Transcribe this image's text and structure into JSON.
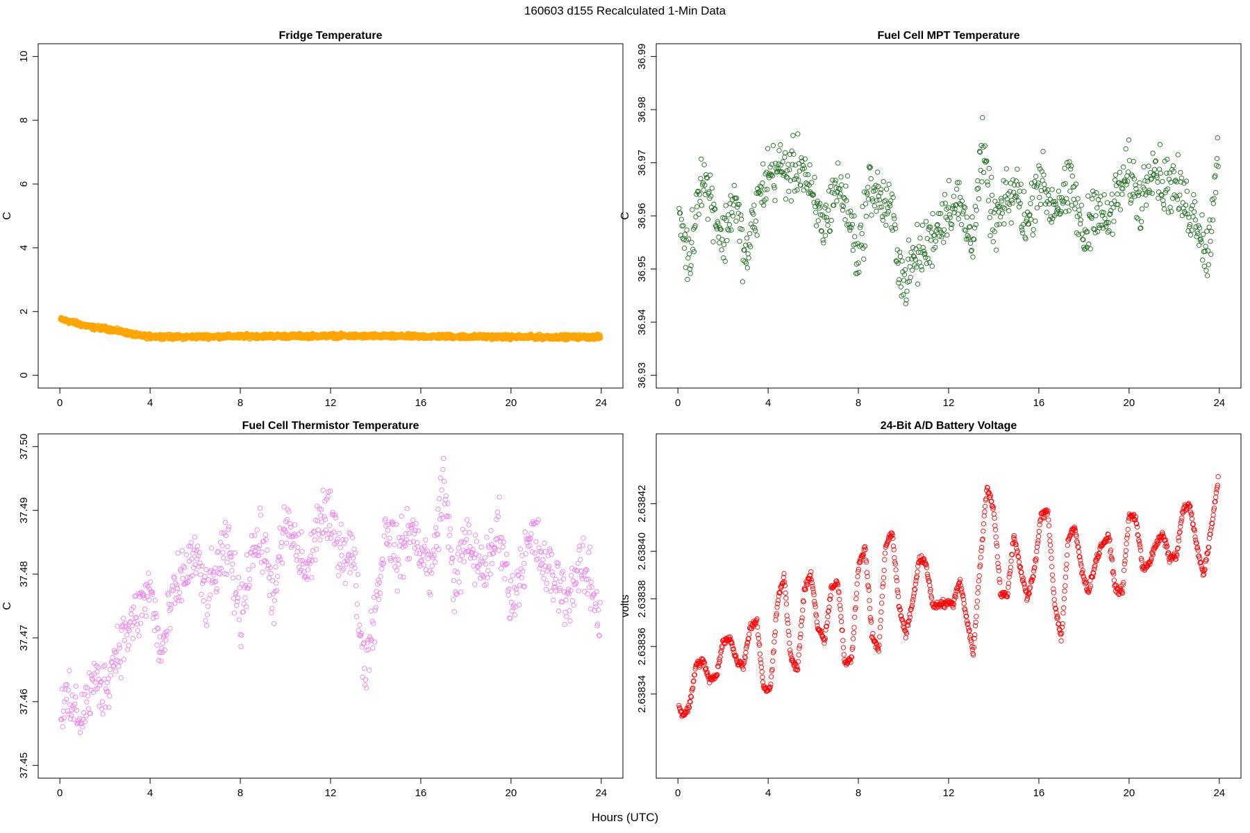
{
  "figure": {
    "title": "160603   d155   Recalculated 1-Min Data",
    "xlabel": "Hours (UTC)"
  },
  "chart_data": [
    {
      "type": "scatter",
      "title": "Fridge Temperature",
      "ylabel": "C",
      "xlim": [
        0,
        24
      ],
      "ylim": [
        0,
        10
      ],
      "xticks": [
        0,
        4,
        8,
        12,
        16,
        20,
        24
      ],
      "yticks": [
        0,
        2,
        4,
        6,
        8,
        10
      ],
      "ytick_labels": [
        "0",
        "2",
        "4",
        "6",
        "8",
        "10"
      ],
      "color": "#ffa500",
      "series": [
        {
          "x": [
            0.0,
            0.5,
            1.0,
            1.5,
            2.0,
            2.5,
            3.0,
            3.5,
            4.0,
            4.5,
            5.0,
            6.0,
            7.0,
            8.0,
            9.0,
            10.0,
            11.0,
            12.0,
            13.0,
            14.0,
            15.0,
            16.0,
            17.0,
            18.0,
            19.0,
            20.0,
            21.0,
            22.0,
            23.0,
            24.0
          ],
          "y": [
            1.76,
            1.68,
            1.58,
            1.5,
            1.47,
            1.4,
            1.33,
            1.24,
            1.22,
            1.22,
            1.2,
            1.21,
            1.22,
            1.22,
            1.23,
            1.23,
            1.23,
            1.24,
            1.23,
            1.23,
            1.22,
            1.22,
            1.22,
            1.21,
            1.21,
            1.2,
            1.2,
            1.2,
            1.2,
            1.2
          ]
        }
      ]
    },
    {
      "type": "scatter",
      "title": "Fuel Cell MPT Temperature",
      "ylabel": "C",
      "xlim": [
        0,
        24
      ],
      "ylim": [
        36.93,
        36.99
      ],
      "xticks": [
        0,
        4,
        8,
        12,
        16,
        20,
        24
      ],
      "yticks": [
        36.93,
        36.94,
        36.95,
        36.96,
        36.97,
        36.98,
        36.99
      ],
      "ytick_labels": [
        "36.93",
        "36.94",
        "36.95",
        "36.96",
        "36.97",
        "36.98",
        "36.99"
      ],
      "color": "#1a6b1a",
      "series": [
        {
          "x": [
            0.0,
            0.5,
            1.0,
            1.5,
            2.0,
            2.5,
            3.0,
            3.5,
            4.0,
            4.5,
            5.0,
            5.5,
            6.0,
            6.5,
            7.0,
            7.5,
            8.0,
            8.5,
            9.0,
            9.5,
            10.0,
            10.5,
            11.0,
            11.5,
            12.0,
            12.5,
            13.0,
            13.5,
            14.0,
            14.5,
            15.0,
            15.5,
            16.0,
            16.5,
            17.0,
            17.5,
            18.0,
            18.5,
            19.0,
            19.5,
            20.0,
            20.5,
            21.0,
            21.5,
            22.0,
            22.5,
            23.0,
            23.5,
            24.0
          ],
          "y": [
            36.962,
            36.951,
            36.968,
            36.963,
            36.955,
            36.964,
            36.951,
            36.962,
            36.968,
            36.969,
            36.968,
            36.97,
            36.962,
            36.958,
            36.966,
            36.962,
            36.952,
            36.966,
            36.963,
            36.96,
            36.947,
            36.952,
            36.954,
            36.958,
            36.962,
            36.962,
            36.955,
            36.972,
            36.958,
            36.962,
            36.965,
            36.958,
            36.968,
            36.962,
            36.963,
            36.965,
            36.955,
            36.963,
            36.958,
            36.964,
            36.968,
            36.962,
            36.971,
            36.966,
            36.966,
            36.962,
            36.96,
            36.952,
            36.976
          ]
        }
      ]
    },
    {
      "type": "scatter",
      "title": "Fuel Cell Thermistor Temperature",
      "ylabel": "C",
      "xlim": [
        0,
        24
      ],
      "ylim": [
        37.45,
        37.5
      ],
      "xticks": [
        0,
        4,
        8,
        12,
        16,
        20,
        24
      ],
      "yticks": [
        37.45,
        37.46,
        37.47,
        37.48,
        37.49,
        37.5
      ],
      "ytick_labels": [
        "37.45",
        "37.46",
        "37.47",
        "37.48",
        "37.49",
        "37.50"
      ],
      "color": "#ee82ee",
      "series": [
        {
          "x": [
            0.0,
            0.5,
            1.0,
            1.5,
            2.0,
            2.5,
            3.0,
            3.5,
            4.0,
            4.5,
            5.0,
            5.5,
            6.0,
            6.5,
            7.0,
            7.5,
            8.0,
            8.5,
            9.0,
            9.5,
            10.0,
            10.5,
            11.0,
            11.5,
            12.0,
            12.5,
            13.0,
            13.5,
            14.0,
            14.5,
            15.0,
            15.5,
            16.0,
            16.5,
            17.0,
            17.5,
            18.0,
            18.5,
            19.0,
            19.5,
            20.0,
            20.5,
            21.0,
            21.5,
            22.0,
            22.5,
            23.0,
            23.5,
            24.0
          ],
          "y": [
            37.46,
            37.459,
            37.458,
            37.463,
            37.462,
            37.468,
            37.471,
            37.474,
            37.478,
            37.467,
            37.476,
            37.48,
            37.483,
            37.476,
            37.481,
            37.484,
            37.473,
            37.484,
            37.485,
            37.476,
            37.488,
            37.484,
            37.48,
            37.489,
            37.488,
            37.484,
            37.483,
            37.465,
            37.475,
            37.488,
            37.482,
            37.487,
            37.484,
            37.48,
            37.495,
            37.478,
            37.485,
            37.482,
            37.481,
            37.488,
            37.475,
            37.482,
            37.486,
            37.481,
            37.479,
            37.476,
            37.481,
            37.479,
            37.472
          ]
        }
      ]
    },
    {
      "type": "scatter",
      "title": "24-Bit A/D Battery Voltage",
      "ylabel": "volts",
      "xlim": [
        0,
        24
      ],
      "ylim": [
        2.63831,
        2.638444
      ],
      "xticks": [
        0,
        4,
        8,
        12,
        16,
        20,
        24
      ],
      "yticks": [
        2.63834,
        2.63836,
        2.63838,
        2.6384,
        2.63842
      ],
      "ytick_labels": [
        "2.63834",
        "2.63836",
        "2.63838",
        "2.63840",
        "2.63842"
      ],
      "color": "#ff0000",
      "series": [
        {
          "x": [
            0.0,
            0.2,
            0.5,
            0.8,
            1.1,
            1.4,
            1.7,
            2.0,
            2.3,
            2.6,
            2.9,
            3.2,
            3.5,
            3.8,
            4.1,
            4.4,
            4.7,
            5.0,
            5.3,
            5.6,
            5.9,
            6.2,
            6.5,
            6.8,
            7.1,
            7.4,
            7.7,
            8.0,
            8.3,
            8.6,
            8.9,
            9.2,
            9.5,
            9.8,
            10.1,
            10.4,
            10.7,
            11.0,
            11.3,
            11.6,
            11.9,
            12.2,
            12.5,
            12.8,
            13.1,
            13.4,
            13.7,
            14.0,
            14.3,
            14.6,
            14.9,
            15.2,
            15.5,
            15.8,
            16.1,
            16.4,
            16.7,
            17.0,
            17.3,
            17.6,
            17.9,
            18.2,
            18.5,
            18.8,
            19.1,
            19.4,
            19.7,
            20.0,
            20.3,
            20.6,
            20.9,
            21.2,
            21.5,
            21.8,
            22.1,
            22.4,
            22.7,
            23.0,
            23.3,
            23.6,
            24.0
          ],
          "y": [
            2.638337,
            2.638331,
            2.638334,
            2.638352,
            2.638354,
            2.638346,
            2.638347,
            2.638362,
            2.638364,
            2.638354,
            2.638352,
            2.638368,
            2.638371,
            2.638342,
            2.638342,
            2.638378,
            2.63839,
            2.638355,
            2.63835,
            2.638383,
            2.638391,
            2.638368,
            2.638362,
            2.638384,
            2.638387,
            2.638353,
            2.638355,
            2.638393,
            2.638402,
            2.638365,
            2.638358,
            2.638402,
            2.638408,
            2.638377,
            2.638365,
            2.638378,
            2.638397,
            2.638395,
            2.638377,
            2.638378,
            2.638378,
            2.638378,
            2.638388,
            2.638372,
            2.638357,
            2.638395,
            2.638427,
            2.638418,
            2.638382,
            2.638381,
            2.638407,
            2.638392,
            2.63838,
            2.638392,
            2.638415,
            2.638417,
            2.638378,
            2.638363,
            2.638405,
            2.63841,
            2.638392,
            2.638383,
            2.638395,
            2.638403,
            2.638406,
            2.638384,
            2.638383,
            2.638415,
            2.638414,
            2.638393,
            2.638395,
            2.638403,
            2.638407,
            2.638397,
            2.638398,
            2.638418,
            2.638419,
            2.638402,
            2.63839,
            2.638407,
            2.638433
          ]
        }
      ]
    }
  ]
}
